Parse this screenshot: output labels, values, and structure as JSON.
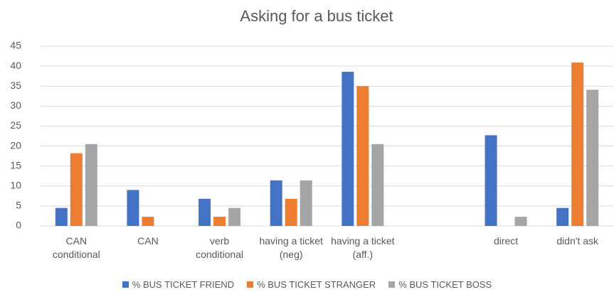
{
  "chart_data": {
    "type": "bar",
    "title": "Asking for a bus ticket",
    "categories": [
      "CAN conditional",
      "CAN",
      "verb conditional",
      "having a ticket (neg)",
      "having a ticket (aff.)",
      null,
      "direct",
      "didn't ask"
    ],
    "series": [
      {
        "name": "% BUS TICKET FRIEND",
        "color": "#4472c4",
        "values": [
          4.5,
          9,
          6.8,
          11.4,
          38.6,
          null,
          22.7,
          4.5
        ]
      },
      {
        "name": "% BUS TICKET STRANGER",
        "color": "#ed7d31",
        "values": [
          18.2,
          2.3,
          2.3,
          6.8,
          35,
          null,
          0,
          40.9
        ]
      },
      {
        "name": "% BUS TICKET BOSS",
        "color": "#a5a5a5",
        "values": [
          20.5,
          0,
          4.5,
          11.4,
          20.5,
          null,
          2.3,
          34.1
        ]
      }
    ],
    "ylim": [
      0,
      45
    ],
    "yticks": [
      0,
      5,
      10,
      15,
      20,
      25,
      30,
      35,
      40,
      45
    ],
    "grid": true,
    "legend": "bottom"
  }
}
